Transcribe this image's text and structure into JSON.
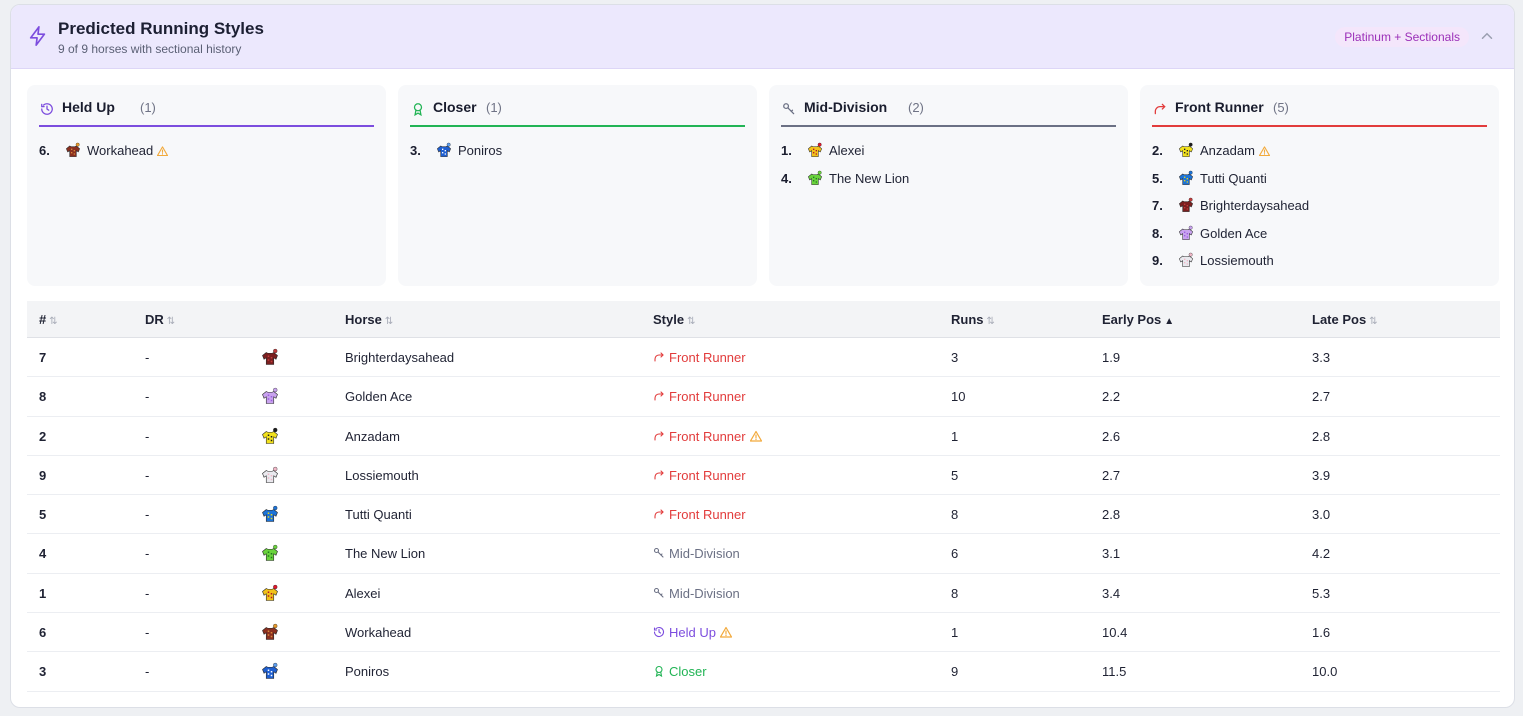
{
  "header": {
    "title": "Predicted Running Styles",
    "subtitle": "9 of 9 horses with sectional history",
    "badge": "Platinum + Sectionals"
  },
  "colors": {
    "held_up": "#7c4dde",
    "closer": "#22b455",
    "mid_division": "#6b7084",
    "front_runner": "#e23c3c",
    "warning": "#f2a93b"
  },
  "groups": [
    {
      "name": "Held Up",
      "count": "(1)",
      "icon": "clock-icon",
      "color": "#7c4dde",
      "horses": [
        {
          "num": "6.",
          "name": "Workahead",
          "warning": true,
          "silk": "silk-workahead"
        }
      ]
    },
    {
      "name": "Closer",
      "count": "(1)",
      "icon": "award-icon",
      "color": "#22b455",
      "horses": [
        {
          "num": "3.",
          "name": "Poniros",
          "warning": false,
          "silk": "silk-poniros"
        }
      ]
    },
    {
      "name": "Mid-Division",
      "count": "(2)",
      "icon": "key-icon",
      "color": "#6b7084",
      "horses": [
        {
          "num": "1.",
          "name": "Alexei",
          "warning": false,
          "silk": "silk-alexei"
        },
        {
          "num": "4.",
          "name": "The New Lion",
          "warning": false,
          "silk": "silk-the-new-lion"
        }
      ]
    },
    {
      "name": "Front Runner",
      "count": "(5)",
      "icon": "trend-up-icon",
      "color": "#e23c3c",
      "horses": [
        {
          "num": "2.",
          "name": "Anzadam",
          "warning": true,
          "silk": "silk-anzadam"
        },
        {
          "num": "5.",
          "name": "Tutti Quanti",
          "warning": false,
          "silk": "silk-tutti-quanti"
        },
        {
          "num": "7.",
          "name": "Brighterdaysahead",
          "warning": false,
          "silk": "silk-brighterdaysahead"
        },
        {
          "num": "8.",
          "name": "Golden Ace",
          "warning": false,
          "silk": "silk-golden-ace"
        },
        {
          "num": "9.",
          "name": "Lossiemouth",
          "warning": false,
          "silk": "silk-lossiemouth"
        }
      ]
    }
  ],
  "table": {
    "columns": [
      "#",
      "DR",
      "Horse",
      "Style",
      "Runs",
      "Early Pos",
      "Late Pos"
    ],
    "sorted_column": "Early Pos",
    "rows": [
      {
        "num": "7",
        "dr": "-",
        "horse": "Brighterdaysahead",
        "style": "Front Runner",
        "warning": false,
        "runs": "3",
        "early": "1.9",
        "late": "3.3"
      },
      {
        "num": "8",
        "dr": "-",
        "horse": "Golden Ace",
        "style": "Front Runner",
        "warning": false,
        "runs": "10",
        "early": "2.2",
        "late": "2.7"
      },
      {
        "num": "2",
        "dr": "-",
        "horse": "Anzadam",
        "style": "Front Runner",
        "warning": true,
        "runs": "1",
        "early": "2.6",
        "late": "2.8"
      },
      {
        "num": "9",
        "dr": "-",
        "horse": "Lossiemouth",
        "style": "Front Runner",
        "warning": false,
        "runs": "5",
        "early": "2.7",
        "late": "3.9"
      },
      {
        "num": "5",
        "dr": "-",
        "horse": "Tutti Quanti",
        "style": "Front Runner",
        "warning": false,
        "runs": "8",
        "early": "2.8",
        "late": "3.0"
      },
      {
        "num": "4",
        "dr": "-",
        "horse": "The New Lion",
        "style": "Mid-Division",
        "warning": false,
        "runs": "6",
        "early": "3.1",
        "late": "4.2"
      },
      {
        "num": "1",
        "dr": "-",
        "horse": "Alexei",
        "style": "Mid-Division",
        "warning": false,
        "runs": "8",
        "early": "3.4",
        "late": "5.3"
      },
      {
        "num": "6",
        "dr": "-",
        "horse": "Workahead",
        "style": "Held Up",
        "warning": true,
        "runs": "1",
        "early": "10.4",
        "late": "1.6"
      },
      {
        "num": "3",
        "dr": "-",
        "horse": "Poniros",
        "style": "Closer",
        "warning": false,
        "runs": "9",
        "early": "11.5",
        "late": "10.0"
      }
    ]
  },
  "silks": {
    "Brighterdaysahead": {
      "body": "#7a1f1f",
      "accent": "#c23b3b",
      "dot": "#c23b3b"
    },
    "Golden Ace": {
      "body": "#c9a3ef",
      "accent": "#9b5ce0",
      "dot": "#c9a3ef"
    },
    "Anzadam": {
      "body": "#f2e11c",
      "accent": "#1c1c1c",
      "dot": "#1c1c1c"
    },
    "Lossiemouth": {
      "body": "#e9e9ee",
      "accent": "#f0b7c7",
      "dot": "#f0b7c7"
    },
    "Tutti Quanti": {
      "body": "#1c73d8",
      "accent": "#e6d31a",
      "dot": "#1c73d8"
    },
    "The New Lion": {
      "body": "#6ad33c",
      "accent": "#1f7a1f",
      "dot": "#6ad33c"
    },
    "Alexei": {
      "body": "#f2c21a",
      "accent": "#b0152c",
      "dot": "#e3172c"
    },
    "Workahead": {
      "body": "#8a2f1f",
      "accent": "#d88a3a",
      "dot": "#e89a2a"
    },
    "Poniros": {
      "body": "#1f5fd0",
      "accent": "#ffffff",
      "dot": "#5fa0f0"
    }
  }
}
